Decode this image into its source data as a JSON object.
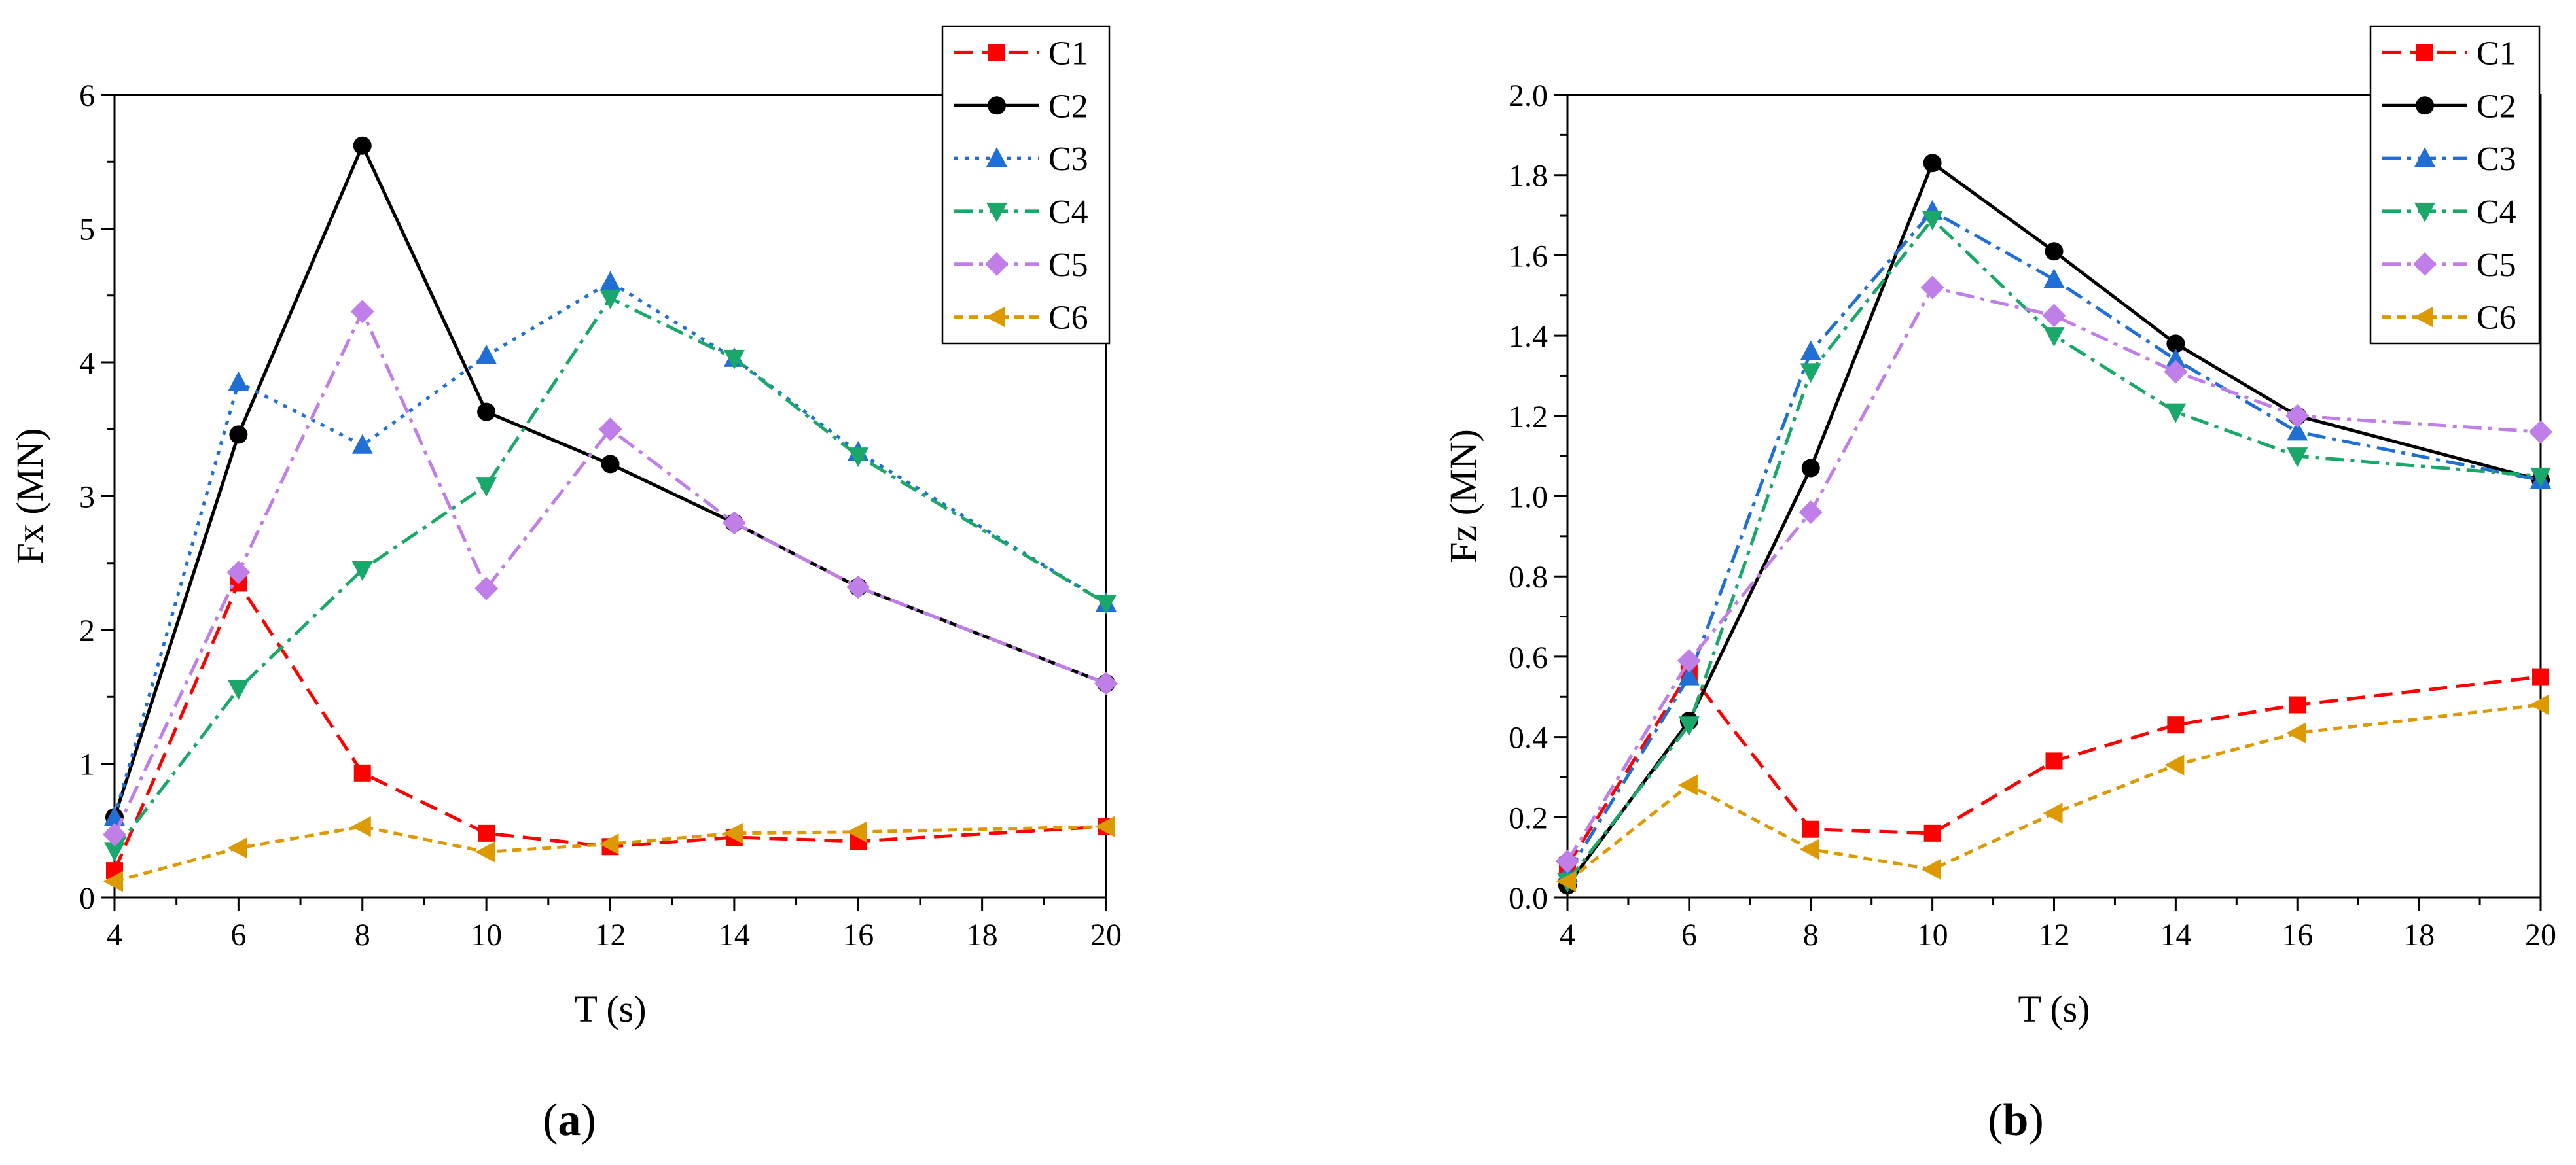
{
  "chart_data": [
    {
      "type": "line",
      "panel": "a",
      "xlabel": "T (s)",
      "ylabel": "Fx (MN)",
      "xlim": [
        4,
        20
      ],
      "ylim": [
        0,
        6
      ],
      "xticks": [
        4,
        6,
        8,
        10,
        12,
        14,
        16,
        18,
        20
      ],
      "yticks": [
        0,
        1,
        2,
        3,
        4,
        5,
        6
      ],
      "x": [
        4,
        6,
        8,
        10,
        12,
        14,
        16,
        20
      ],
      "legend_position": "top-right",
      "series": [
        {
          "name": "C1",
          "color": "#ff0000",
          "dash": "dash",
          "marker": "square",
          "values": [
            0.2,
            2.35,
            0.93,
            0.48,
            0.38,
            0.45,
            0.42,
            0.53
          ]
        },
        {
          "name": "C2",
          "color": "#000000",
          "dash": "solid",
          "marker": "circle",
          "values": [
            0.6,
            3.46,
            5.62,
            3.63,
            3.24,
            2.8,
            2.32,
            1.6
          ]
        },
        {
          "name": "C3",
          "color": "#1f6fd6",
          "dash": "dot",
          "marker": "triangle-up",
          "values": [
            0.6,
            3.85,
            3.38,
            4.05,
            4.6,
            4.03,
            3.33,
            2.2
          ]
        },
        {
          "name": "C4",
          "color": "#1aa86a",
          "dash": "dashdot",
          "marker": "triangle-down",
          "values": [
            0.35,
            1.56,
            2.45,
            3.08,
            4.48,
            4.03,
            3.3,
            2.2
          ]
        },
        {
          "name": "C5",
          "color": "#c07ee8",
          "dash": "dashdot",
          "marker": "diamond",
          "values": [
            0.47,
            2.43,
            4.38,
            2.31,
            3.5,
            2.8,
            2.32,
            1.6
          ]
        },
        {
          "name": "C6",
          "color": "#dd9a00",
          "dash": "shortdash",
          "marker": "triangle-left",
          "values": [
            0.12,
            0.37,
            0.53,
            0.34,
            0.4,
            0.48,
            0.49,
            0.53
          ]
        }
      ]
    },
    {
      "type": "line",
      "panel": "b",
      "xlabel": "T (s)",
      "ylabel": "Fz (MN)",
      "xlim": [
        4,
        20
      ],
      "ylim": [
        0,
        2.0
      ],
      "xticks": [
        4,
        6,
        8,
        10,
        12,
        14,
        16,
        18,
        20
      ],
      "yticks": [
        0.0,
        0.2,
        0.4,
        0.6,
        0.8,
        1.0,
        1.2,
        1.4,
        1.6,
        1.8,
        2.0
      ],
      "x": [
        4,
        6,
        8,
        10,
        12,
        14,
        16,
        20
      ],
      "legend_position": "top-right",
      "series": [
        {
          "name": "C1",
          "color": "#ff0000",
          "dash": "dash",
          "marker": "square",
          "values": [
            0.08,
            0.56,
            0.17,
            0.16,
            0.34,
            0.43,
            0.48,
            0.55
          ]
        },
        {
          "name": "C2",
          "color": "#000000",
          "dash": "solid",
          "marker": "circle",
          "values": [
            0.03,
            0.44,
            1.07,
            1.83,
            1.61,
            1.38,
            1.2,
            1.04
          ]
        },
        {
          "name": "C3",
          "color": "#1f6fd6",
          "dash": "dashdot",
          "marker": "triangle-up",
          "values": [
            0.06,
            0.55,
            1.36,
            1.71,
            1.54,
            1.34,
            1.16,
            1.04
          ]
        },
        {
          "name": "C4",
          "color": "#1aa86a",
          "dash": "dashdot",
          "marker": "triangle-down",
          "values": [
            0.04,
            0.43,
            1.31,
            1.69,
            1.4,
            1.21,
            1.1,
            1.05
          ]
        },
        {
          "name": "C5",
          "color": "#c07ee8",
          "dash": "dashdot",
          "marker": "diamond",
          "values": [
            0.09,
            0.59,
            0.96,
            1.52,
            1.45,
            1.31,
            1.2,
            1.16
          ]
        },
        {
          "name": "C6",
          "color": "#dd9a00",
          "dash": "shortdash",
          "marker": "triangle-left",
          "values": [
            0.04,
            0.28,
            0.12,
            0.07,
            0.21,
            0.33,
            0.41,
            0.48
          ]
        }
      ]
    }
  ]
}
